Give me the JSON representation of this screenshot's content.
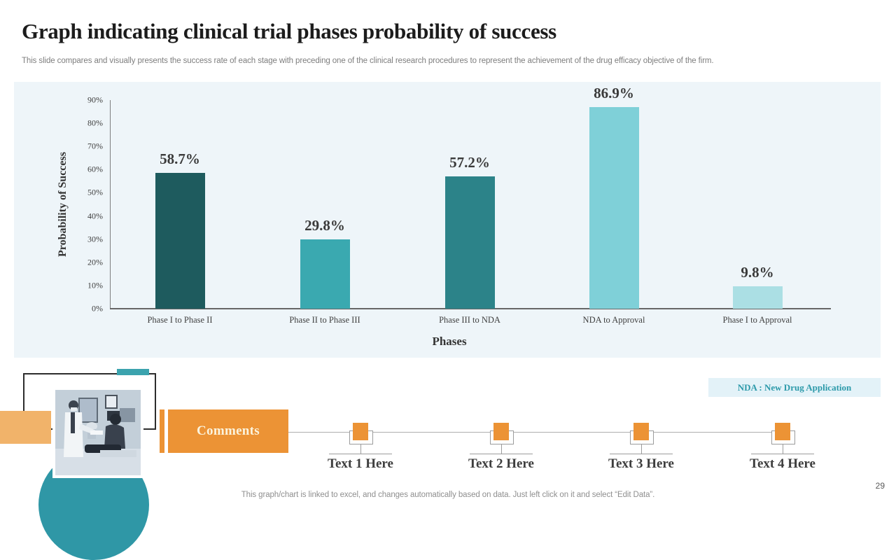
{
  "slide": {
    "title": "Graph indicating clinical trial phases probability of success",
    "subtitle": "This slide compares and visually presents the success rate of each stage with preceding one of the clinical research procedures to represent the achievement of the drug efficacy objective of the firm.",
    "footer_note": "This graph/chart is linked to excel, and changes automatically based on data. Just left click on it and select “Edit Data”.",
    "page_number": "29"
  },
  "chart_data": {
    "type": "bar",
    "categories": [
      "Phase I to Phase II",
      "Phase II to Phase III",
      "Phase III to NDA",
      "NDA to Approval",
      "Phase I to Approval"
    ],
    "values": [
      58.7,
      29.8,
      57.2,
      86.9,
      9.8
    ],
    "value_labels": [
      "58.7%",
      "29.8%",
      "57.2%",
      "86.9%",
      "9.8%"
    ],
    "bar_colors": [
      "#1e5b5e",
      "#3aa9b0",
      "#2c8389",
      "#7fd0d8",
      "#abdfe4"
    ],
    "xlabel": "Phases",
    "ylabel": "Probability of Success",
    "ylim": [
      0,
      90
    ],
    "ytick_labels": [
      "0%",
      "10%",
      "20%",
      "30%",
      "40%",
      "50%",
      "60%",
      "70%",
      "80%",
      "90%"
    ],
    "grid": false,
    "legend": "none",
    "plot_bg": "#eef5f9"
  },
  "nda_note": {
    "label": "NDA : New Drug Application"
  },
  "comments": {
    "label": "Comments"
  },
  "timeline": {
    "items": [
      {
        "label": "Text 1 Here"
      },
      {
        "label": "Text 2 Here"
      },
      {
        "label": "Text 3 Here"
      },
      {
        "label": "Text 4 Here"
      }
    ]
  },
  "colors": {
    "accent_orange": "#ec9335",
    "light_orange": "#f1b36a",
    "teal": "#2f97a6",
    "nda_text": "#2d9aaa",
    "nda_bg": "#e3f2f8"
  }
}
